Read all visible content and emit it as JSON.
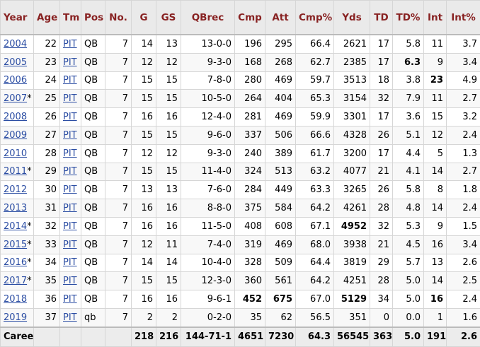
{
  "columns": [
    "Year",
    "Age",
    "Tm",
    "Pos",
    "No.",
    "G",
    "GS",
    "QBrec",
    "Cmp",
    "Att",
    "Cmp%",
    "Yds",
    "TD",
    "TD%",
    "Int",
    "Int%"
  ],
  "rows": [
    {
      "year": "2004",
      "star": "",
      "age": "22",
      "tm": "PIT",
      "pos": "QB",
      "no": "7",
      "g": "14",
      "gs": "13",
      "qbrec": "13-0-0",
      "cmp": "196",
      "att": "295",
      "cmpp": "66.4",
      "yds": "2621",
      "td": "17",
      "tdp": "5.8",
      "int": "11",
      "intp": "3.7",
      "bold": []
    },
    {
      "year": "2005",
      "star": "",
      "age": "23",
      "tm": "PIT",
      "pos": "QB",
      "no": "7",
      "g": "12",
      "gs": "12",
      "qbrec": "9-3-0",
      "cmp": "168",
      "att": "268",
      "cmpp": "62.7",
      "yds": "2385",
      "td": "17",
      "tdp": "6.3",
      "int": "9",
      "intp": "3.4",
      "bold": [
        "tdp"
      ]
    },
    {
      "year": "2006",
      "star": "",
      "age": "24",
      "tm": "PIT",
      "pos": "QB",
      "no": "7",
      "g": "15",
      "gs": "15",
      "qbrec": "7-8-0",
      "cmp": "280",
      "att": "469",
      "cmpp": "59.7",
      "yds": "3513",
      "td": "18",
      "tdp": "3.8",
      "int": "23",
      "intp": "4.9",
      "bold": [
        "int"
      ]
    },
    {
      "year": "2007",
      "star": "*",
      "age": "25",
      "tm": "PIT",
      "pos": "QB",
      "no": "7",
      "g": "15",
      "gs": "15",
      "qbrec": "10-5-0",
      "cmp": "264",
      "att": "404",
      "cmpp": "65.3",
      "yds": "3154",
      "td": "32",
      "tdp": "7.9",
      "int": "11",
      "intp": "2.7",
      "bold": []
    },
    {
      "year": "2008",
      "star": "",
      "age": "26",
      "tm": "PIT",
      "pos": "QB",
      "no": "7",
      "g": "16",
      "gs": "16",
      "qbrec": "12-4-0",
      "cmp": "281",
      "att": "469",
      "cmpp": "59.9",
      "yds": "3301",
      "td": "17",
      "tdp": "3.6",
      "int": "15",
      "intp": "3.2",
      "bold": []
    },
    {
      "year": "2009",
      "star": "",
      "age": "27",
      "tm": "PIT",
      "pos": "QB",
      "no": "7",
      "g": "15",
      "gs": "15",
      "qbrec": "9-6-0",
      "cmp": "337",
      "att": "506",
      "cmpp": "66.6",
      "yds": "4328",
      "td": "26",
      "tdp": "5.1",
      "int": "12",
      "intp": "2.4",
      "bold": []
    },
    {
      "year": "2010",
      "star": "",
      "age": "28",
      "tm": "PIT",
      "pos": "QB",
      "no": "7",
      "g": "12",
      "gs": "12",
      "qbrec": "9-3-0",
      "cmp": "240",
      "att": "389",
      "cmpp": "61.7",
      "yds": "3200",
      "td": "17",
      "tdp": "4.4",
      "int": "5",
      "intp": "1.3",
      "bold": []
    },
    {
      "year": "2011",
      "star": "*",
      "age": "29",
      "tm": "PIT",
      "pos": "QB",
      "no": "7",
      "g": "15",
      "gs": "15",
      "qbrec": "11-4-0",
      "cmp": "324",
      "att": "513",
      "cmpp": "63.2",
      "yds": "4077",
      "td": "21",
      "tdp": "4.1",
      "int": "14",
      "intp": "2.7",
      "bold": []
    },
    {
      "year": "2012",
      "star": "",
      "age": "30",
      "tm": "PIT",
      "pos": "QB",
      "no": "7",
      "g": "13",
      "gs": "13",
      "qbrec": "7-6-0",
      "cmp": "284",
      "att": "449",
      "cmpp": "63.3",
      "yds": "3265",
      "td": "26",
      "tdp": "5.8",
      "int": "8",
      "intp": "1.8",
      "bold": []
    },
    {
      "year": "2013",
      "star": "",
      "age": "31",
      "tm": "PIT",
      "pos": "QB",
      "no": "7",
      "g": "16",
      "gs": "16",
      "qbrec": "8-8-0",
      "cmp": "375",
      "att": "584",
      "cmpp": "64.2",
      "yds": "4261",
      "td": "28",
      "tdp": "4.8",
      "int": "14",
      "intp": "2.4",
      "bold": []
    },
    {
      "year": "2014",
      "star": "*",
      "age": "32",
      "tm": "PIT",
      "pos": "QB",
      "no": "7",
      "g": "16",
      "gs": "16",
      "qbrec": "11-5-0",
      "cmp": "408",
      "att": "608",
      "cmpp": "67.1",
      "yds": "4952",
      "td": "32",
      "tdp": "5.3",
      "int": "9",
      "intp": "1.5",
      "bold": [
        "yds"
      ]
    },
    {
      "year": "2015",
      "star": "*",
      "age": "33",
      "tm": "PIT",
      "pos": "QB",
      "no": "7",
      "g": "12",
      "gs": "11",
      "qbrec": "7-4-0",
      "cmp": "319",
      "att": "469",
      "cmpp": "68.0",
      "yds": "3938",
      "td": "21",
      "tdp": "4.5",
      "int": "16",
      "intp": "3.4",
      "bold": []
    },
    {
      "year": "2016",
      "star": "*",
      "age": "34",
      "tm": "PIT",
      "pos": "QB",
      "no": "7",
      "g": "14",
      "gs": "14",
      "qbrec": "10-4-0",
      "cmp": "328",
      "att": "509",
      "cmpp": "64.4",
      "yds": "3819",
      "td": "29",
      "tdp": "5.7",
      "int": "13",
      "intp": "2.6",
      "bold": []
    },
    {
      "year": "2017",
      "star": "*",
      "age": "35",
      "tm": "PIT",
      "pos": "QB",
      "no": "7",
      "g": "15",
      "gs": "15",
      "qbrec": "12-3-0",
      "cmp": "360",
      "att": "561",
      "cmpp": "64.2",
      "yds": "4251",
      "td": "28",
      "tdp": "5.0",
      "int": "14",
      "intp": "2.5",
      "bold": []
    },
    {
      "year": "2018",
      "star": "",
      "age": "36",
      "tm": "PIT",
      "pos": "QB",
      "no": "7",
      "g": "16",
      "gs": "16",
      "qbrec": "9-6-1",
      "cmp": "452",
      "att": "675",
      "cmpp": "67.0",
      "yds": "5129",
      "td": "34",
      "tdp": "5.0",
      "int": "16",
      "intp": "2.4",
      "bold": [
        "cmp",
        "att",
        "yds",
        "int"
      ]
    },
    {
      "year": "2019",
      "star": "",
      "age": "37",
      "tm": "PIT",
      "pos": "qb",
      "no": "7",
      "g": "2",
      "gs": "2",
      "qbrec": "0-2-0",
      "cmp": "35",
      "att": "62",
      "cmpp": "56.5",
      "yds": "351",
      "td": "0",
      "tdp": "0.0",
      "int": "1",
      "intp": "1.6",
      "bold": []
    }
  ],
  "career": {
    "label": "Career",
    "g": "218",
    "gs": "216",
    "qbrec": "144-71-1",
    "cmp": "4651",
    "att": "7230",
    "cmpp": "64.3",
    "yds": "56545",
    "td": "363",
    "tdp": "5.0",
    "int": "191",
    "intp": "2.6"
  }
}
